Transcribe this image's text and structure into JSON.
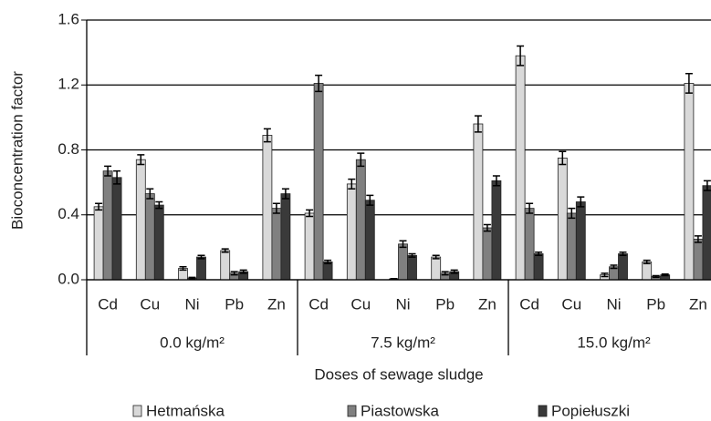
{
  "chart_data": {
    "type": "bar",
    "y_label": "Bioconcentration factor",
    "x_label": "Doses of sewage sludge",
    "categories": [
      "Cd",
      "Cu",
      "Ni",
      "Pb",
      "Zn",
      "Cd",
      "Cu",
      "Ni",
      "Pb",
      "Zn",
      "Cd",
      "Cu",
      "Ni",
      "Pb",
      "Zn"
    ],
    "groups": [
      "0.0 kg/m²",
      "7.5 kg/m²",
      "15.0 kg/m²"
    ],
    "series": [
      {
        "name": "Hetmańska",
        "color": "#d9d9d9",
        "values": [
          0.45,
          0.74,
          0.07,
          0.18,
          0.89,
          0.41,
          0.59,
          0.005,
          0.14,
          0.96,
          1.38,
          0.75,
          0.03,
          0.11,
          1.21
        ],
        "errors": [
          0.02,
          0.03,
          0.01,
          0.01,
          0.04,
          0.02,
          0.03,
          0.002,
          0.01,
          0.05,
          0.06,
          0.04,
          0.01,
          0.01,
          0.06
        ]
      },
      {
        "name": "Piastowska",
        "color": "#808080",
        "values": [
          0.67,
          0.53,
          0.01,
          0.04,
          0.44,
          1.21,
          0.74,
          0.22,
          0.04,
          0.32,
          0.44,
          0.41,
          0.08,
          0.02,
          0.25
        ],
        "errors": [
          0.03,
          0.03,
          0.005,
          0.01,
          0.03,
          0.05,
          0.04,
          0.02,
          0.01,
          0.02,
          0.03,
          0.03,
          0.01,
          0.005,
          0.02
        ]
      },
      {
        "name": "Popiełuszki",
        "color": "#3a3a3a",
        "values": [
          0.63,
          0.46,
          0.14,
          0.05,
          0.53,
          0.11,
          0.49,
          0.15,
          0.05,
          0.61,
          0.16,
          0.48,
          0.16,
          0.03,
          0.58
        ],
        "errors": [
          0.04,
          0.02,
          0.01,
          0.01,
          0.03,
          0.01,
          0.03,
          0.01,
          0.01,
          0.03,
          0.01,
          0.03,
          0.01,
          0.005,
          0.03
        ]
      }
    ],
    "ylim": [
      0,
      1.6
    ],
    "yticks": [
      {
        "value": 0,
        "label": "0.0"
      },
      {
        "value": 0.4,
        "label": "0.4"
      },
      {
        "value": 0.8,
        "label": "0.8"
      },
      {
        "value": 1.2,
        "label": "1.2"
      },
      {
        "value": 1.6,
        "label": "1.6"
      }
    ],
    "grid": true,
    "legend": "bottom"
  }
}
